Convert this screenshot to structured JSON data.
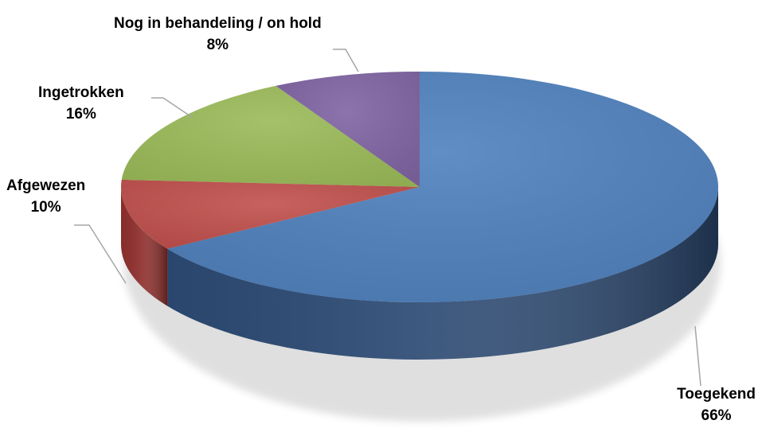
{
  "chart_data": {
    "type": "pie",
    "style": "3d",
    "categories": [
      "Toegekend",
      "Afgewezen",
      "Ingetrokken",
      "Nog in behandeling / on hold"
    ],
    "values": [
      66,
      10,
      16,
      8
    ],
    "percent_labels": [
      "66%",
      "10%",
      "16%",
      "8%"
    ],
    "colors": [
      "#4F81BD",
      "#C0504D",
      "#9BBB59",
      "#8064A2"
    ],
    "side_colors": [
      "#2C4A73",
      "#8E2F2D",
      "#6E8A3A",
      "#5A4478"
    ],
    "title": "",
    "legend": "none"
  }
}
